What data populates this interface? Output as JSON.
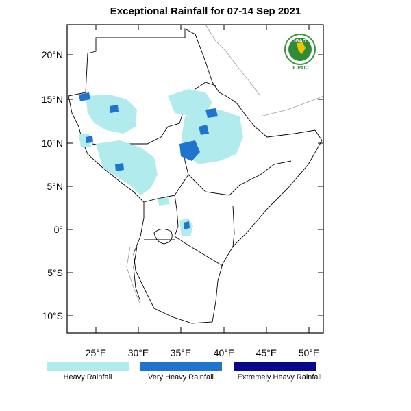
{
  "title": "Exceptional Rainfall for 07-14 Sep 2021",
  "logo": {
    "name": "IGAD",
    "subtitle": "ICPAC"
  },
  "axes": {
    "lat_ticks": [
      "20°N",
      "15°N",
      "10°N",
      "5°N",
      "0°",
      "5°S",
      "10°S"
    ],
    "lon_ticks": [
      "25°E",
      "30°E",
      "35°E",
      "40°E",
      "45°E",
      "50°E"
    ]
  },
  "legend": [
    {
      "label": "Heavy Rainfall",
      "color": "#b2ebee"
    },
    {
      "label": "Very Heavy Rainfall",
      "color": "#1f74cf"
    },
    {
      "label": "Extremely Heavy Rainfall",
      "color": "#08088e"
    }
  ]
}
